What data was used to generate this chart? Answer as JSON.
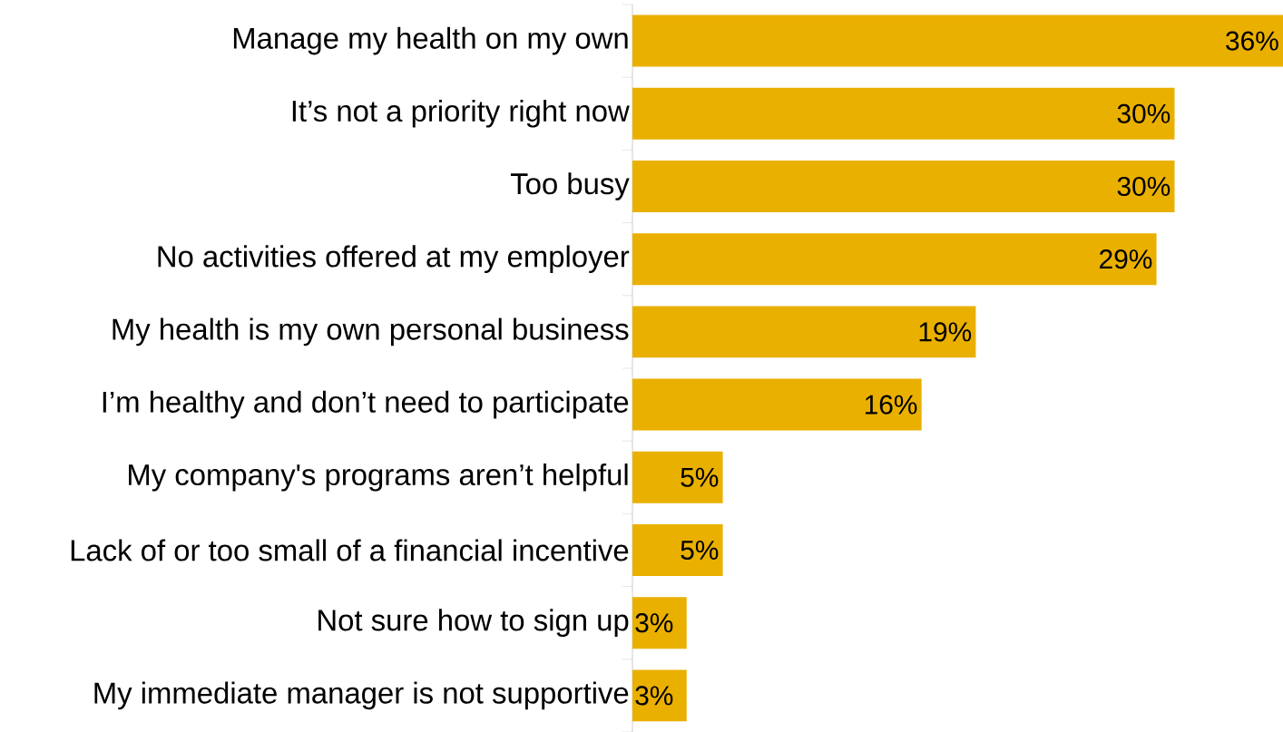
{
  "chart_data": {
    "type": "bar",
    "orientation": "horizontal",
    "categories": [
      "Manage my health on my own",
      "It’s not a priority right now",
      "Too busy",
      "No activities offered at my employer",
      "My health is my own personal business",
      "I’m healthy and don’t need to participate",
      "My company's programs aren’t helpful",
      "Lack of or too small of a financial incentive",
      "Not sure how to sign up",
      "My immediate manager is not supportive"
    ],
    "values": [
      36,
      30,
      30,
      29,
      19,
      16,
      5,
      5,
      3,
      3
    ],
    "value_labels": [
      "36%",
      "30%",
      "30%",
      "29%",
      "19%",
      "16%",
      "5%",
      "5%",
      "3%",
      "3%"
    ],
    "color": "#eab000"
  }
}
